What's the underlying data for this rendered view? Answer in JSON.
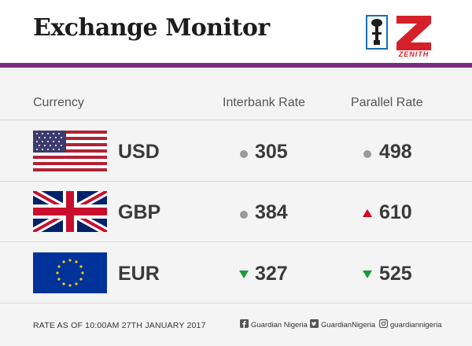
{
  "header": {
    "title": "Exchange Monitor",
    "logo_text": "ZENITH"
  },
  "colors": {
    "accent": "#7b2d83",
    "up": "#d0021b",
    "down": "#1a9a3a",
    "neutral": "#9a9a9a"
  },
  "columns": {
    "currency": "Currency",
    "interbank": "Interbank Rate",
    "parallel": "Parallel Rate"
  },
  "rows": [
    {
      "code": "USD",
      "flag": "us-flag-icon",
      "interbank": "305",
      "interbank_trend": "neutral",
      "parallel": "498",
      "parallel_trend": "neutral"
    },
    {
      "code": "GBP",
      "flag": "uk-flag-icon",
      "interbank": "384",
      "interbank_trend": "neutral",
      "parallel": "610",
      "parallel_trend": "up"
    },
    {
      "code": "EUR",
      "flag": "eu-flag-icon",
      "interbank": "327",
      "interbank_trend": "down",
      "parallel": "525",
      "parallel_trend": "down"
    }
  ],
  "footer": {
    "date": "RATE AS OF 10:00AM 27TH JANUARY 2017",
    "facebook": "Guardian Nigeria",
    "twitter": "GuardianNigeria",
    "instagram": "guardiannigeria"
  }
}
